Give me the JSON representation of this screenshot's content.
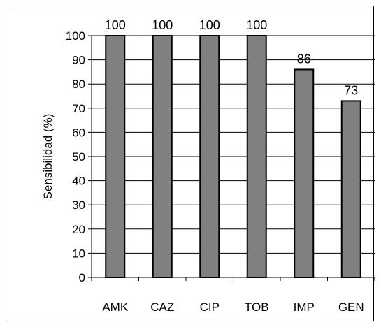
{
  "chart_data": {
    "type": "bar",
    "categories": [
      "AMK",
      "CAZ",
      "CIP",
      "TOB",
      "IMP",
      "GEN"
    ],
    "values": [
      100,
      100,
      100,
      100,
      86,
      73
    ],
    "data_labels": [
      "100",
      "100",
      "100",
      "100",
      "86",
      "73"
    ],
    "title": "",
    "xlabel": "",
    "ylabel": "Sensibilidad (%)",
    "ylim": [
      0,
      100
    ],
    "yticks": [
      0,
      10,
      20,
      30,
      40,
      50,
      60,
      70,
      80,
      90,
      100
    ],
    "grid": true,
    "legend": "none",
    "bar_color": "#808080",
    "bar_edge_color": "#000000"
  }
}
